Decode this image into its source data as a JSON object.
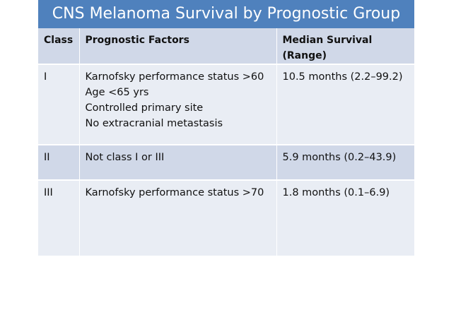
{
  "title": "CNS Melanoma Survival by Prognostic Group",
  "headers": {
    "class": "Class",
    "factors": "Prognostic Factors",
    "survival_line1": "Median Survival",
    "survival_line2": "(Range)"
  },
  "rows": [
    {
      "class": "I",
      "factors": [
        "Karnofsky performance status >60",
        "Age <65 yrs",
        "Controlled primary site",
        "No extracranial metastasis"
      ],
      "survival": "10.5 months (2.2–99.2)"
    },
    {
      "class": "II",
      "factors": [
        "Not class I or III"
      ],
      "survival": "5.9 months (0.2–43.9)"
    },
    {
      "class": "III",
      "factors": [
        "Karnofsky performance status >70"
      ],
      "survival": "1.8 months (0.1–6.9)"
    }
  ],
  "colors": {
    "title_bg": "#4f81bd",
    "header_bg": "#d0d8e8",
    "row_light": "#e9edf4",
    "row_dark": "#d0d8e8"
  }
}
